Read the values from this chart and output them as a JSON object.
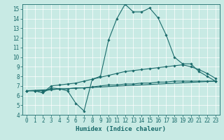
{
  "xlabel": "Humidex (Indice chaleur)",
  "xlim": [
    -0.5,
    23.5
  ],
  "ylim": [
    4,
    15.5
  ],
  "yticks": [
    4,
    5,
    6,
    7,
    8,
    9,
    10,
    11,
    12,
    13,
    14,
    15
  ],
  "xticks": [
    0,
    1,
    2,
    3,
    4,
    5,
    6,
    7,
    8,
    9,
    10,
    11,
    12,
    13,
    14,
    15,
    16,
    17,
    18,
    19,
    20,
    21,
    22,
    23
  ],
  "bg_color": "#c8eae4",
  "line_color": "#1a6b6b",
  "grid_color": "#ffffff",
  "lines": [
    {
      "x": [
        0,
        1,
        2,
        3,
        4,
        5,
        6,
        7,
        8,
        9,
        10,
        11,
        12,
        13,
        14,
        15,
        16,
        17,
        18,
        19,
        20,
        21,
        22,
        23
      ],
      "y": [
        6.5,
        6.5,
        6.3,
        6.8,
        6.7,
        6.5,
        5.2,
        4.4,
        7.7,
        8.0,
        11.8,
        14.0,
        15.5,
        14.7,
        14.7,
        15.1,
        14.1,
        12.3,
        10.0,
        9.3,
        9.3,
        8.5,
        8.0,
        7.5
      ]
    },
    {
      "x": [
        0,
        1,
        2,
        3,
        4,
        5,
        6,
        7,
        8,
        9,
        10,
        11,
        12,
        13,
        14,
        15,
        16,
        17,
        18,
        19,
        20,
        21,
        22,
        23
      ],
      "y": [
        6.5,
        6.5,
        6.3,
        7.0,
        7.1,
        7.2,
        7.3,
        7.5,
        7.7,
        7.9,
        8.1,
        8.3,
        8.5,
        8.6,
        8.7,
        8.8,
        8.9,
        9.0,
        9.1,
        9.2,
        9.0,
        8.7,
        8.3,
        7.8
      ]
    },
    {
      "x": [
        0,
        1,
        2,
        3,
        4,
        5,
        6,
        7,
        8,
        9,
        10,
        11,
        12,
        13,
        14,
        15,
        16,
        17,
        18,
        19,
        20,
        21,
        22,
        23
      ],
      "y": [
        6.5,
        6.5,
        6.5,
        6.6,
        6.7,
        6.7,
        6.8,
        6.8,
        6.9,
        7.0,
        7.1,
        7.1,
        7.2,
        7.2,
        7.3,
        7.3,
        7.4,
        7.4,
        7.5,
        7.5,
        7.5,
        7.5,
        7.5,
        7.5
      ]
    },
    {
      "x": [
        0,
        23
      ],
      "y": [
        6.5,
        7.5
      ]
    }
  ],
  "tick_fontsize": 5.5,
  "xlabel_fontsize": 6.5
}
